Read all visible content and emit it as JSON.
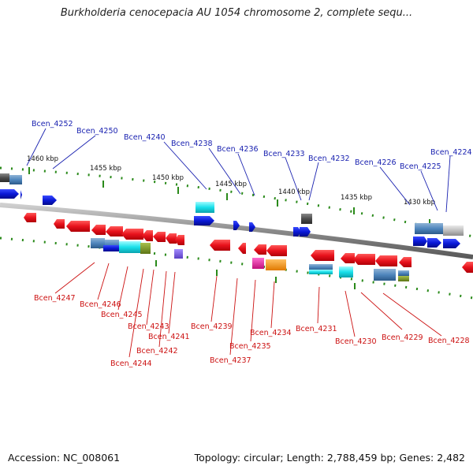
{
  "title": "Burkholderia cenocepacia AU 1054 chromosome 2, complete sequ...",
  "footer": {
    "accession": "Accession: NC_008061",
    "summary": "Topology: circular; Length: 2,788,459 bp; Genes: 2,482"
  },
  "scale_labels": [
    "1460 kbp",
    "1455 kbp",
    "1450 kbp",
    "1445 kbp",
    "1440 kbp",
    "1435 kbp",
    "1430 kbp"
  ],
  "top_gene_labels": [
    "Bcen_4252",
    "Bcen_4250",
    "Bcen_4240",
    "Bcen_4238",
    "Bcen_4236",
    "Bcen_4233",
    "Bcen_4232",
    "Bcen_4226",
    "Bcen_4225",
    "Bcen_4224"
  ],
  "bottom_gene_labels": [
    "Bcen_4247",
    "Bcen_4246",
    "Bcen_4245",
    "Bcen_4243",
    "Bcen_4241",
    "Bcen_4242",
    "Bcen_4244",
    "Bcen_4239",
    "Bcen_4237",
    "Bcen_4235",
    "Bcen_4234",
    "Bcen_4231",
    "Bcen_4230",
    "Bcen_4229",
    "Bcen_4228"
  ],
  "colors": {
    "forward_gene": "#0a18d6",
    "reverse_gene": "#e8121c",
    "top_label": "#1a22b0",
    "bottom_label": "#cc1111",
    "backbone": "#777777",
    "tick": "#2a8a1a"
  }
}
